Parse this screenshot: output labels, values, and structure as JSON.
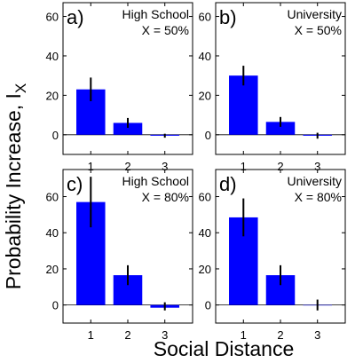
{
  "figure": {
    "ylabel_main": "Probability Increase, I",
    "ylabel_sub": "X",
    "xlabel": "Social Distance",
    "bar_color": "#0000ff",
    "error_color": "#000000"
  },
  "chart_data": [
    {
      "type": "bar",
      "panel": "a)",
      "title_line1": "High School",
      "title_line2": "X = 50%",
      "categories": [
        "1",
        "2",
        "3"
      ],
      "values": [
        23,
        6,
        -0.5
      ],
      "error": [
        [
          17,
          29
        ],
        [
          3.5,
          8.5
        ],
        [
          -1.5,
          0.5
        ]
      ],
      "ylim": [
        -10,
        67
      ],
      "yticks": [
        0,
        20,
        40,
        60
      ]
    },
    {
      "type": "bar",
      "panel": "b)",
      "title_line1": "University",
      "title_line2": "X = 50%",
      "categories": [
        "1",
        "2",
        "3"
      ],
      "values": [
        30,
        6.5,
        -0.5
      ],
      "error": [
        [
          25,
          35
        ],
        [
          4,
          9
        ],
        [
          -2,
          1
        ]
      ],
      "ylim": [
        -10,
        67
      ],
      "yticks": [
        0,
        20,
        40,
        60
      ]
    },
    {
      "type": "bar",
      "panel": "c)",
      "title_line1": "High School",
      "title_line2": "X = 80%",
      "categories": [
        "1",
        "2",
        "3"
      ],
      "values": [
        57,
        16.5,
        -1.5
      ],
      "error": [
        [
          43,
          71
        ],
        [
          11,
          22
        ],
        [
          -3,
          1.5
        ]
      ],
      "ylim": [
        -10,
        75
      ],
      "yticks": [
        0,
        20,
        40,
        60
      ]
    },
    {
      "type": "bar",
      "panel": "d)",
      "title_line1": "University",
      "title_line2": "X = 80%",
      "categories": [
        "1",
        "2",
        "3"
      ],
      "values": [
        48.5,
        16.5,
        0
      ],
      "error": [
        [
          38,
          59
        ],
        [
          11,
          22
        ],
        [
          -3,
          3
        ]
      ],
      "ylim": [
        -10,
        75
      ],
      "yticks": [
        0,
        20,
        40,
        60
      ]
    }
  ]
}
